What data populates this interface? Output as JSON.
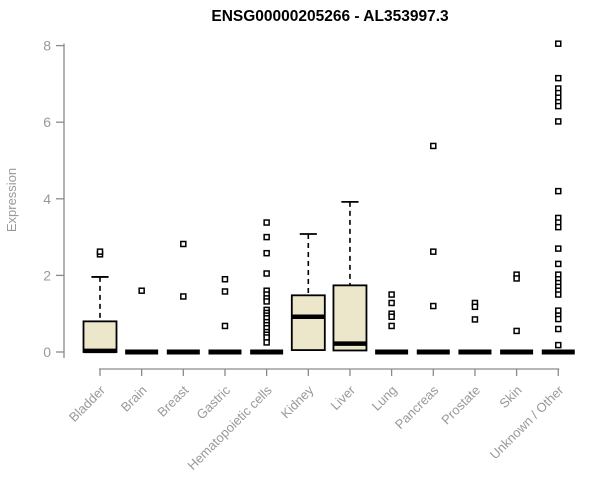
{
  "page": {
    "background": "#ffffff"
  },
  "chart_data": {
    "type": "boxplot",
    "title": "ENSG00000205266 - AL353997.3",
    "ylabel": "Expression",
    "xlabel": "",
    "ylim": [
      0,
      8
    ],
    "yticks": [
      0,
      2,
      4,
      6,
      8
    ],
    "grid": false,
    "legend": "none",
    "box_fill": "#ECE6CB",
    "box_stroke": "#000000",
    "median_color": "#000000",
    "outlier_fill": "#ffffff",
    "outlier_stroke": "#000000",
    "axis_color": "#8a8a8a",
    "tick_label_color": "#999999",
    "title_color": "#000000",
    "categories": [
      "Bladder",
      "Brain",
      "Breast",
      "Gastric",
      "Hematopoietic cells",
      "Kidney",
      "Liver",
      "Lung",
      "Pancreas",
      "Prostate",
      "Skin",
      "Unknown / Other"
    ],
    "groups": [
      {
        "category": "Bladder",
        "q1": 0,
        "median": 0.03,
        "q3": 0.8,
        "whisker_low": 0,
        "whisker_high": 1.96,
        "outliers": [
          2.55,
          2.62
        ]
      },
      {
        "category": "Brain",
        "q1": 0,
        "median": 0,
        "q3": 0,
        "whisker_low": 0,
        "whisker_high": 0,
        "outliers": [
          1.6
        ]
      },
      {
        "category": "Breast",
        "q1": 0,
        "median": 0,
        "q3": 0,
        "whisker_low": 0,
        "whisker_high": 0,
        "outliers": [
          2.82,
          1.45
        ]
      },
      {
        "category": "Gastric",
        "q1": 0,
        "median": 0,
        "q3": 0,
        "whisker_low": 0,
        "whisker_high": 0,
        "outliers": [
          1.9,
          1.58,
          0.68
        ]
      },
      {
        "category": "Hematopoietic cells",
        "q1": 0,
        "median": 0,
        "q3": 0,
        "whisker_low": 0,
        "whisker_high": 0,
        "outliers": [
          3.38,
          3.0,
          2.58,
          2.05,
          1.6,
          1.5,
          1.4,
          1.32,
          1.1,
          1.02,
          0.95,
          0.88,
          0.78,
          0.7,
          0.62,
          0.52,
          0.45,
          0.38,
          0.25
        ]
      },
      {
        "category": "Kidney",
        "q1": 0.05,
        "median": 0.92,
        "q3": 1.48,
        "whisker_low": 0.05,
        "whisker_high": 3.08,
        "outliers": []
      },
      {
        "category": "Liver",
        "q1": 0.04,
        "median": 0.22,
        "q3": 1.74,
        "whisker_low": 0.04,
        "whisker_high": 3.92,
        "outliers": []
      },
      {
        "category": "Lung",
        "q1": 0,
        "median": 0,
        "q3": 0,
        "whisker_low": 0,
        "whisker_high": 0,
        "outliers": [
          1.5,
          1.28,
          1.0,
          0.92,
          0.68
        ]
      },
      {
        "category": "Pancreas",
        "q1": 0,
        "median": 0,
        "q3": 0,
        "whisker_low": 0,
        "whisker_high": 0,
        "outliers": [
          5.38,
          2.62,
          1.2
        ]
      },
      {
        "category": "Prostate",
        "q1": 0,
        "median": 0,
        "q3": 0,
        "whisker_low": 0,
        "whisker_high": 0,
        "outliers": [
          1.28,
          1.18,
          0.85
        ]
      },
      {
        "category": "Skin",
        "q1": 0,
        "median": 0,
        "q3": 0,
        "whisker_low": 0,
        "whisker_high": 0,
        "outliers": [
          2.02,
          1.92,
          0.55
        ]
      },
      {
        "category": "Unknown / Other",
        "q1": 0,
        "median": 0,
        "q3": 0,
        "whisker_low": 0,
        "whisker_high": 0,
        "outliers": [
          8.05,
          7.15,
          6.88,
          6.76,
          6.64,
          6.52,
          6.42,
          6.02,
          4.2,
          3.5,
          3.38,
          3.26,
          2.7,
          2.3,
          2.02,
          1.9,
          1.8,
          1.7,
          1.6,
          1.5,
          1.08,
          0.95,
          0.86,
          0.6,
          0.18
        ]
      }
    ]
  }
}
